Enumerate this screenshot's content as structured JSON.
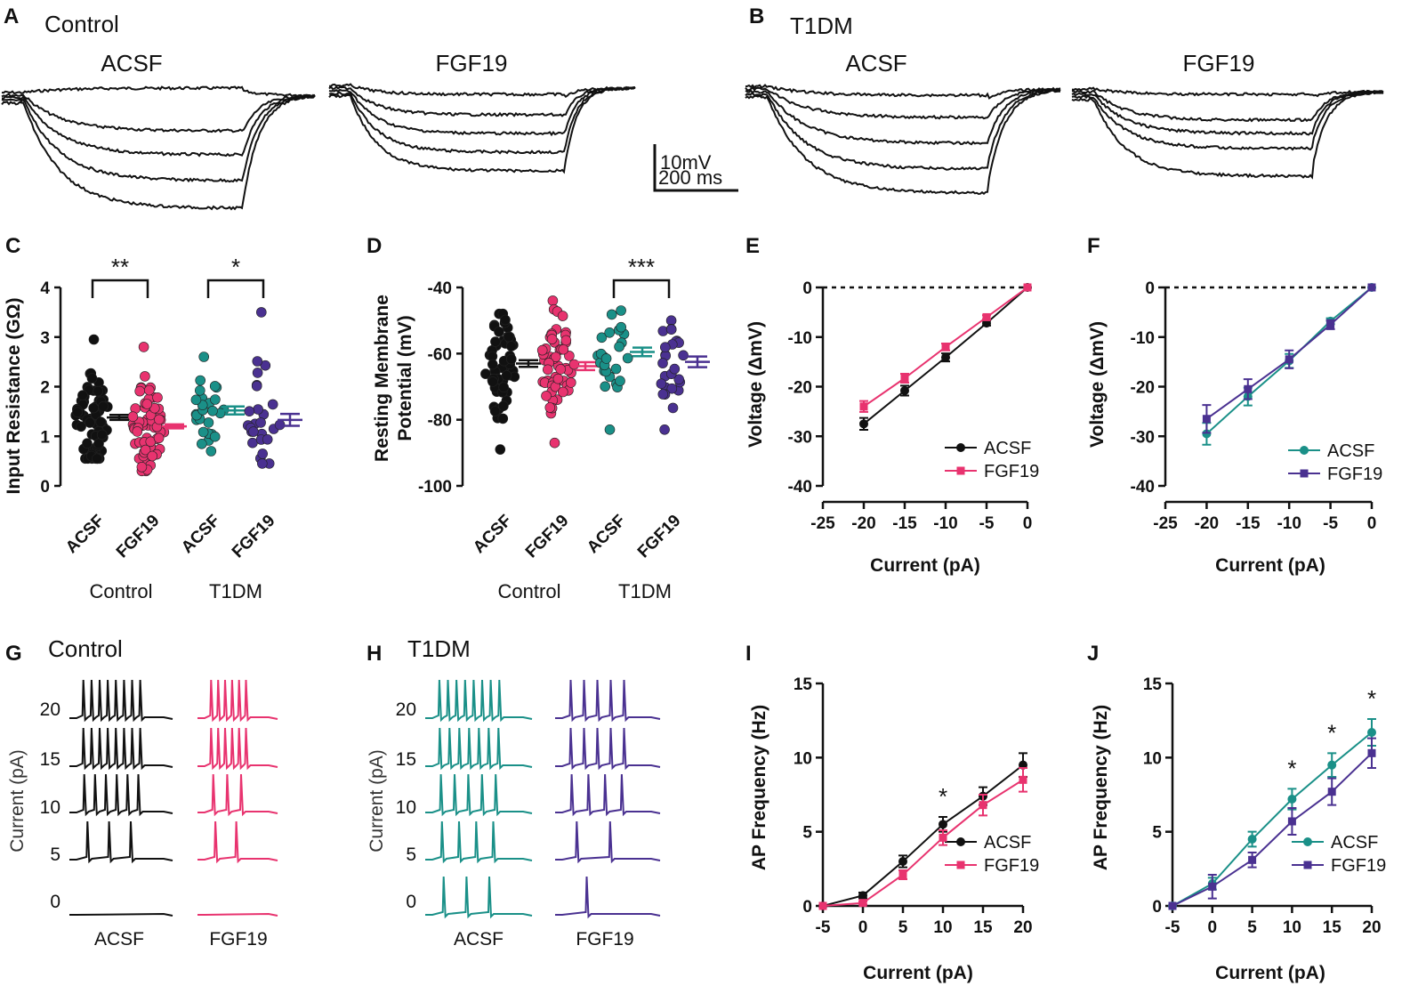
{
  "colors": {
    "control_acsf": "#111111",
    "control_fgf19": "#e8336f",
    "t1dm_acsf": "#1a9088",
    "t1dm_fgf19": "#4a3191"
  },
  "panels": {
    "A": {
      "letter": "A",
      "title": "Control",
      "left_label": "ACSF",
      "right_label": "FGF19"
    },
    "B": {
      "letter": "B",
      "title": "T1DM",
      "left_label": "ACSF",
      "right_label": "FGF19"
    },
    "scalebar": {
      "v": "10mV",
      "h": "200 ms"
    },
    "G": {
      "letter": "G",
      "title": "Control",
      "ylabel": "Current (pA)",
      "levels": [
        "20",
        "15",
        "10",
        "5",
        "0"
      ],
      "left_label": "ACSF",
      "right_label": "FGF19"
    },
    "H": {
      "letter": "H",
      "title": "T1DM",
      "ylabel": "Current (pA)",
      "levels": [
        "20",
        "15",
        "10",
        "5",
        "0"
      ],
      "left_label": "ACSF",
      "right_label": "FGF19"
    }
  },
  "chart_data": [
    {
      "panel": "C",
      "type": "scatter",
      "ylabel": "Input Resistance (GΩ)",
      "yticks": [
        "0",
        "1",
        "2",
        "3",
        "4"
      ],
      "ylim": [
        0,
        4
      ],
      "categories": [
        "ACSF",
        "FGF19",
        "ACSF",
        "FGF19"
      ],
      "groups": [
        "Control",
        "T1DM"
      ],
      "means": [
        1.38,
        1.2,
        1.52,
        1.33
      ],
      "sems": [
        0.05,
        0.04,
        0.08,
        0.12
      ],
      "range": [
        [
          0.55,
          2.95
        ],
        [
          0.3,
          2.8
        ],
        [
          0.7,
          2.6
        ],
        [
          0.45,
          3.5
        ]
      ],
      "significance": [
        "**",
        "*"
      ]
    },
    {
      "panel": "D",
      "type": "scatter",
      "ylabel": "Resting Membrane Potential (mV)",
      "yticks": [
        "-40",
        "-60",
        "-80",
        "-100"
      ],
      "ylim": [
        -100,
        -40
      ],
      "categories": [
        "ACSF",
        "FGF19",
        "ACSF",
        "FGF19"
      ],
      "groups": [
        "Control",
        "T1DM"
      ],
      "means": [
        -63.0,
        -63.8,
        -59.5,
        -62.5
      ],
      "sems": [
        1.0,
        1.2,
        1.3,
        1.6
      ],
      "range": [
        [
          -89,
          -48
        ],
        [
          -87,
          -44
        ],
        [
          -83,
          -47
        ],
        [
          -83,
          -50
        ]
      ],
      "significance": [
        "***"
      ]
    },
    {
      "panel": "E",
      "type": "line",
      "xlabel": "Current (pA)",
      "ylabel": "Voltage (ΔmV)",
      "xticks": [
        "-25",
        "-20",
        "-15",
        "-10",
        "-5",
        "0"
      ],
      "yticks": [
        "0",
        "-10",
        "-20",
        "-30",
        "-40"
      ],
      "xlim": [
        -25,
        0
      ],
      "ylim": [
        -40,
        0
      ],
      "x": [
        -20,
        -15,
        -10,
        -5,
        0
      ],
      "series": [
        {
          "name": "ACSF",
          "values": [
            -27.5,
            -20.8,
            -14.1,
            -7.2,
            0
          ],
          "err": [
            1.2,
            1.0,
            0.8,
            0.5,
            0
          ]
        },
        {
          "name": "FGF19",
          "values": [
            -24.0,
            -18.3,
            -12.0,
            -6.0,
            0
          ],
          "err": [
            1.1,
            0.9,
            0.7,
            0.4,
            0
          ]
        }
      ]
    },
    {
      "panel": "F",
      "type": "line",
      "xlabel": "Current (pA)",
      "ylabel": "Voltage (ΔmV)",
      "xticks": [
        "-25",
        "-20",
        "-15",
        "-10",
        "-5",
        "0"
      ],
      "yticks": [
        "0",
        "-10",
        "-20",
        "-30",
        "-40"
      ],
      "xlim": [
        -25,
        0
      ],
      "ylim": [
        -40,
        0
      ],
      "x": [
        -20,
        -15,
        -10,
        -5,
        0
      ],
      "series": [
        {
          "name": "ACSF",
          "values": [
            -29.5,
            -22.0,
            -14.8,
            -6.8,
            0
          ],
          "err": [
            2.2,
            1.8,
            1.4,
            0.6,
            0
          ]
        },
        {
          "name": "FGF19",
          "values": [
            -26.5,
            -20.5,
            -14.5,
            -7.5,
            0
          ],
          "err": [
            2.8,
            2.0,
            1.8,
            0.9,
            0
          ]
        }
      ]
    },
    {
      "panel": "I",
      "type": "line",
      "xlabel": "Current (pA)",
      "ylabel": "AP Frequency (Hz)",
      "xticks": [
        "-5",
        "0",
        "5",
        "10",
        "15",
        "20"
      ],
      "yticks": [
        "0",
        "5",
        "10",
        "15"
      ],
      "xlim": [
        -5,
        20
      ],
      "ylim": [
        0,
        15
      ],
      "x": [
        -5,
        0,
        5,
        10,
        15,
        20
      ],
      "series": [
        {
          "name": "ACSF",
          "values": [
            0,
            0.7,
            3.0,
            5.5,
            7.4,
            9.5
          ],
          "err": [
            0,
            0.2,
            0.4,
            0.5,
            0.6,
            0.8
          ]
        },
        {
          "name": "FGF19",
          "values": [
            0,
            0.2,
            2.1,
            4.6,
            6.8,
            8.5
          ],
          "err": [
            0,
            0.1,
            0.3,
            0.5,
            0.7,
            0.8
          ]
        }
      ],
      "significance": [
        {
          "x": 10,
          "label": "*"
        }
      ]
    },
    {
      "panel": "J",
      "type": "line",
      "xlabel": "Current (pA)",
      "ylabel": "AP Frequency (Hz)",
      "xticks": [
        "-5",
        "0",
        "5",
        "10",
        "15",
        "20"
      ],
      "yticks": [
        "0",
        "5",
        "10",
        "15"
      ],
      "xlim": [
        -5,
        20
      ],
      "ylim": [
        0,
        15
      ],
      "x": [
        -5,
        0,
        5,
        10,
        15,
        20
      ],
      "series": [
        {
          "name": "ACSF",
          "values": [
            0,
            1.5,
            4.5,
            7.2,
            9.5,
            11.7
          ],
          "err": [
            0,
            0.4,
            0.5,
            0.7,
            0.8,
            0.9
          ]
        },
        {
          "name": "FGF19",
          "values": [
            0,
            1.3,
            3.1,
            5.7,
            7.7,
            10.3
          ],
          "err": [
            0,
            0.8,
            0.5,
            0.9,
            0.9,
            1.0
          ]
        }
      ],
      "significance": [
        {
          "x": 10,
          "label": "*"
        },
        {
          "x": 15,
          "label": "*"
        },
        {
          "x": 20,
          "label": "*"
        }
      ]
    }
  ]
}
